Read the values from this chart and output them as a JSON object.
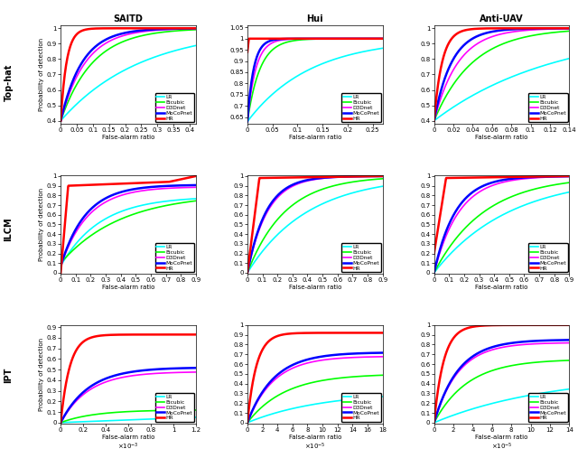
{
  "title_cols": [
    "SAITD",
    "Hui",
    "Anti-UAV"
  ],
  "title_rows": [
    "Top-hat",
    "ILCM",
    "IPT"
  ],
  "methods": [
    "LR",
    "Bicubic",
    "D3Dnet",
    "MoCoPnet",
    "HR"
  ],
  "colors": [
    "cyan",
    "lime",
    "magenta",
    "blue",
    "red"
  ],
  "linewidths": [
    1.2,
    1.2,
    1.2,
    1.8,
    1.8
  ],
  "xlabel": "False-alarm ratio",
  "ylabel": "Probability of detection"
}
